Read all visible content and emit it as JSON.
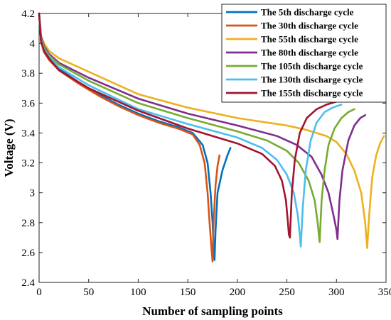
{
  "chart_data": {
    "type": "line",
    "title": "",
    "xlabel": "Number of sampling points",
    "ylabel": "Voltage (V)",
    "xlim": [
      0,
      350
    ],
    "ylim": [
      2.4,
      4.2
    ],
    "xticks": [
      0,
      50,
      100,
      150,
      200,
      250,
      300,
      350
    ],
    "yticks": [
      2.4,
      2.6,
      2.8,
      3,
      3.2,
      3.4,
      3.6,
      3.8,
      4,
      4.2
    ],
    "xtick_labels": [
      "0",
      "50",
      "100",
      "150",
      "200",
      "250",
      "300",
      "350"
    ],
    "ytick_labels": [
      "2.4",
      "2.6",
      "2.8",
      "3",
      "3.2",
      "3.4",
      "3.6",
      "3.8",
      "4",
      "4.2"
    ],
    "grid": false,
    "legend_position": "top-right",
    "series": [
      {
        "name": "The 5th discharge cycle",
        "color": "#0072BD",
        "x": [
          0,
          2,
          5,
          10,
          20,
          40,
          60,
          80,
          100,
          120,
          140,
          155,
          165,
          170,
          173,
          175,
          176,
          177,
          178,
          180,
          185,
          190,
          193
        ],
        "y": [
          4.2,
          4.02,
          3.95,
          3.9,
          3.83,
          3.74,
          3.66,
          3.59,
          3.53,
          3.48,
          3.44,
          3.4,
          3.32,
          3.2,
          3.0,
          2.8,
          2.65,
          2.55,
          2.75,
          3.0,
          3.15,
          3.25,
          3.3
        ]
      },
      {
        "name": "The 30th discharge cycle",
        "color": "#D95319",
        "x": [
          0,
          2,
          5,
          10,
          20,
          40,
          60,
          80,
          100,
          120,
          140,
          155,
          162,
          167,
          170,
          172,
          174,
          175,
          176,
          178,
          180,
          182
        ],
        "y": [
          4.2,
          4.01,
          3.94,
          3.89,
          3.82,
          3.73,
          3.65,
          3.58,
          3.52,
          3.47,
          3.43,
          3.39,
          3.32,
          3.2,
          3.0,
          2.8,
          2.62,
          2.54,
          2.8,
          3.05,
          3.18,
          3.25
        ]
      },
      {
        "name": "The 55th discharge cycle",
        "color": "#EDB120",
        "x": [
          0,
          2,
          5,
          10,
          20,
          50,
          100,
          150,
          200,
          250,
          270,
          290,
          300,
          310,
          318,
          325,
          329,
          331,
          333,
          336,
          340,
          344,
          348
        ],
        "y": [
          4.2,
          4.05,
          4.0,
          3.95,
          3.9,
          3.81,
          3.66,
          3.57,
          3.5,
          3.45,
          3.42,
          3.38,
          3.34,
          3.26,
          3.15,
          3.0,
          2.8,
          2.63,
          2.85,
          3.1,
          3.25,
          3.33,
          3.38
        ]
      },
      {
        "name": "The 80th discharge cycle",
        "color": "#7E2F8E",
        "x": [
          0,
          2,
          5,
          10,
          20,
          50,
          100,
          150,
          200,
          240,
          260,
          275,
          285,
          292,
          297,
          300,
          301,
          303,
          306,
          312,
          318,
          324,
          329
        ],
        "y": [
          4.2,
          4.04,
          3.98,
          3.93,
          3.87,
          3.77,
          3.63,
          3.53,
          3.45,
          3.38,
          3.32,
          3.24,
          3.12,
          3.0,
          2.85,
          2.75,
          2.69,
          2.95,
          3.15,
          3.35,
          3.45,
          3.5,
          3.52
        ]
      },
      {
        "name": "The 105th discharge cycle",
        "color": "#77AC30",
        "x": [
          0,
          2,
          5,
          10,
          20,
          50,
          100,
          150,
          200,
          230,
          250,
          262,
          272,
          278,
          281,
          283,
          285,
          288,
          292,
          298,
          305,
          312,
          318
        ],
        "y": [
          4.2,
          4.03,
          3.97,
          3.92,
          3.86,
          3.75,
          3.6,
          3.5,
          3.41,
          3.35,
          3.28,
          3.2,
          3.08,
          2.95,
          2.8,
          2.67,
          2.95,
          3.15,
          3.32,
          3.43,
          3.5,
          3.54,
          3.56
        ]
      },
      {
        "name": "The 130th discharge cycle",
        "color": "#4DBEEE",
        "x": [
          0,
          2,
          5,
          10,
          20,
          50,
          100,
          150,
          200,
          225,
          240,
          250,
          257,
          261,
          263,
          264,
          266,
          269,
          274,
          280,
          288,
          296,
          305
        ],
        "y": [
          4.2,
          4.02,
          3.96,
          3.91,
          3.84,
          3.72,
          3.56,
          3.46,
          3.37,
          3.3,
          3.22,
          3.12,
          3.0,
          2.85,
          2.72,
          2.64,
          2.9,
          3.15,
          3.35,
          3.47,
          3.54,
          3.57,
          3.59
        ]
      },
      {
        "name": "The 155th discharge cycle",
        "color": "#A2142F",
        "x": [
          0,
          2,
          5,
          10,
          20,
          50,
          100,
          150,
          200,
          225,
          238,
          245,
          249,
          251,
          252,
          253,
          255,
          258,
          263,
          270,
          280,
          290,
          300
        ],
        "y": [
          4.2,
          4.01,
          3.95,
          3.9,
          3.82,
          3.7,
          3.55,
          3.43,
          3.33,
          3.26,
          3.18,
          3.08,
          2.95,
          2.8,
          2.72,
          2.7,
          3.0,
          3.22,
          3.4,
          3.5,
          3.56,
          3.59,
          3.61
        ]
      }
    ]
  }
}
